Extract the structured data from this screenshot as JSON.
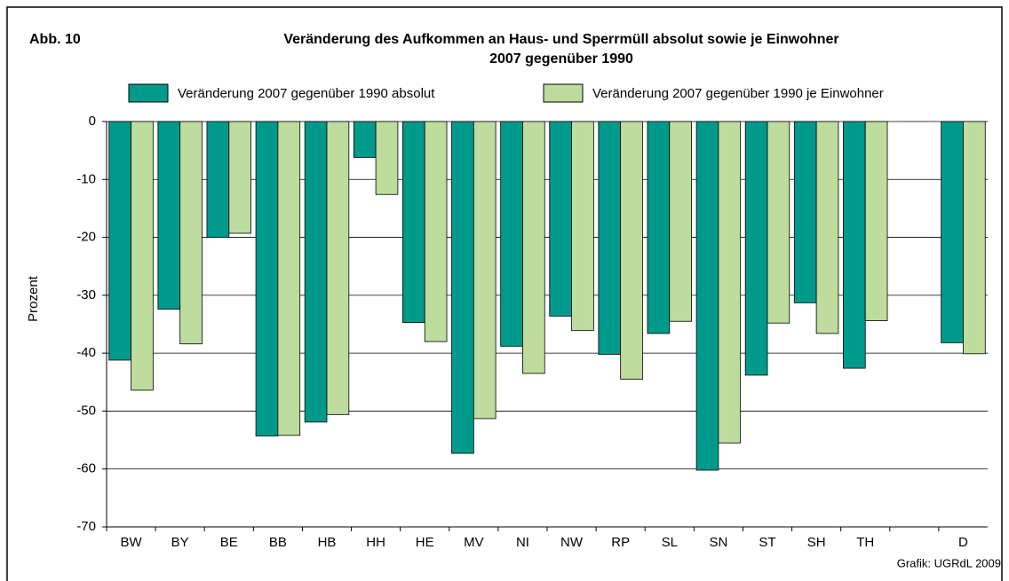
{
  "chart_data": {
    "type": "bar",
    "figure_label": "Abb. 10",
    "title_lines": [
      "Veränderung des Aufkommen an Haus- und Sperrmüll absolut sowie je Einwohner",
      "2007 gegenüber 1990"
    ],
    "ylabel": "Prozent",
    "source": "Grafik: UGRdL 2009",
    "categories": [
      "BW",
      "BY",
      "BE",
      "BB",
      "HB",
      "HH",
      "HE",
      "MV",
      "NI",
      "NW",
      "RP",
      "SL",
      "SN",
      "ST",
      "SH",
      "TH",
      null,
      "D"
    ],
    "series": [
      {
        "name": "Veränderung 2007 gegenüber 1990 absolut",
        "color": "#009a8c",
        "values": [
          -41.2,
          -32.4,
          -20.0,
          -54.3,
          -51.9,
          -6.2,
          -34.7,
          -57.3,
          -38.8,
          -33.6,
          -40.2,
          -36.6,
          -60.2,
          -43.8,
          -31.3,
          -42.6,
          null,
          -38.2
        ]
      },
      {
        "name": "Veränderung 2007 gegenüber 1990 je Einwohner",
        "color": "#bddc9e",
        "values": [
          -46.4,
          -38.4,
          -19.3,
          -54.2,
          -50.6,
          -12.6,
          -38.0,
          -51.3,
          -43.5,
          -36.1,
          -44.5,
          -34.5,
          -55.5,
          -34.8,
          -36.6,
          -34.4,
          null,
          -40.1
        ]
      }
    ],
    "ylim": [
      -70,
      0
    ],
    "yticks": [
      0,
      -10,
      -20,
      -30,
      -40,
      -50,
      -60,
      -70
    ],
    "grid": true
  }
}
